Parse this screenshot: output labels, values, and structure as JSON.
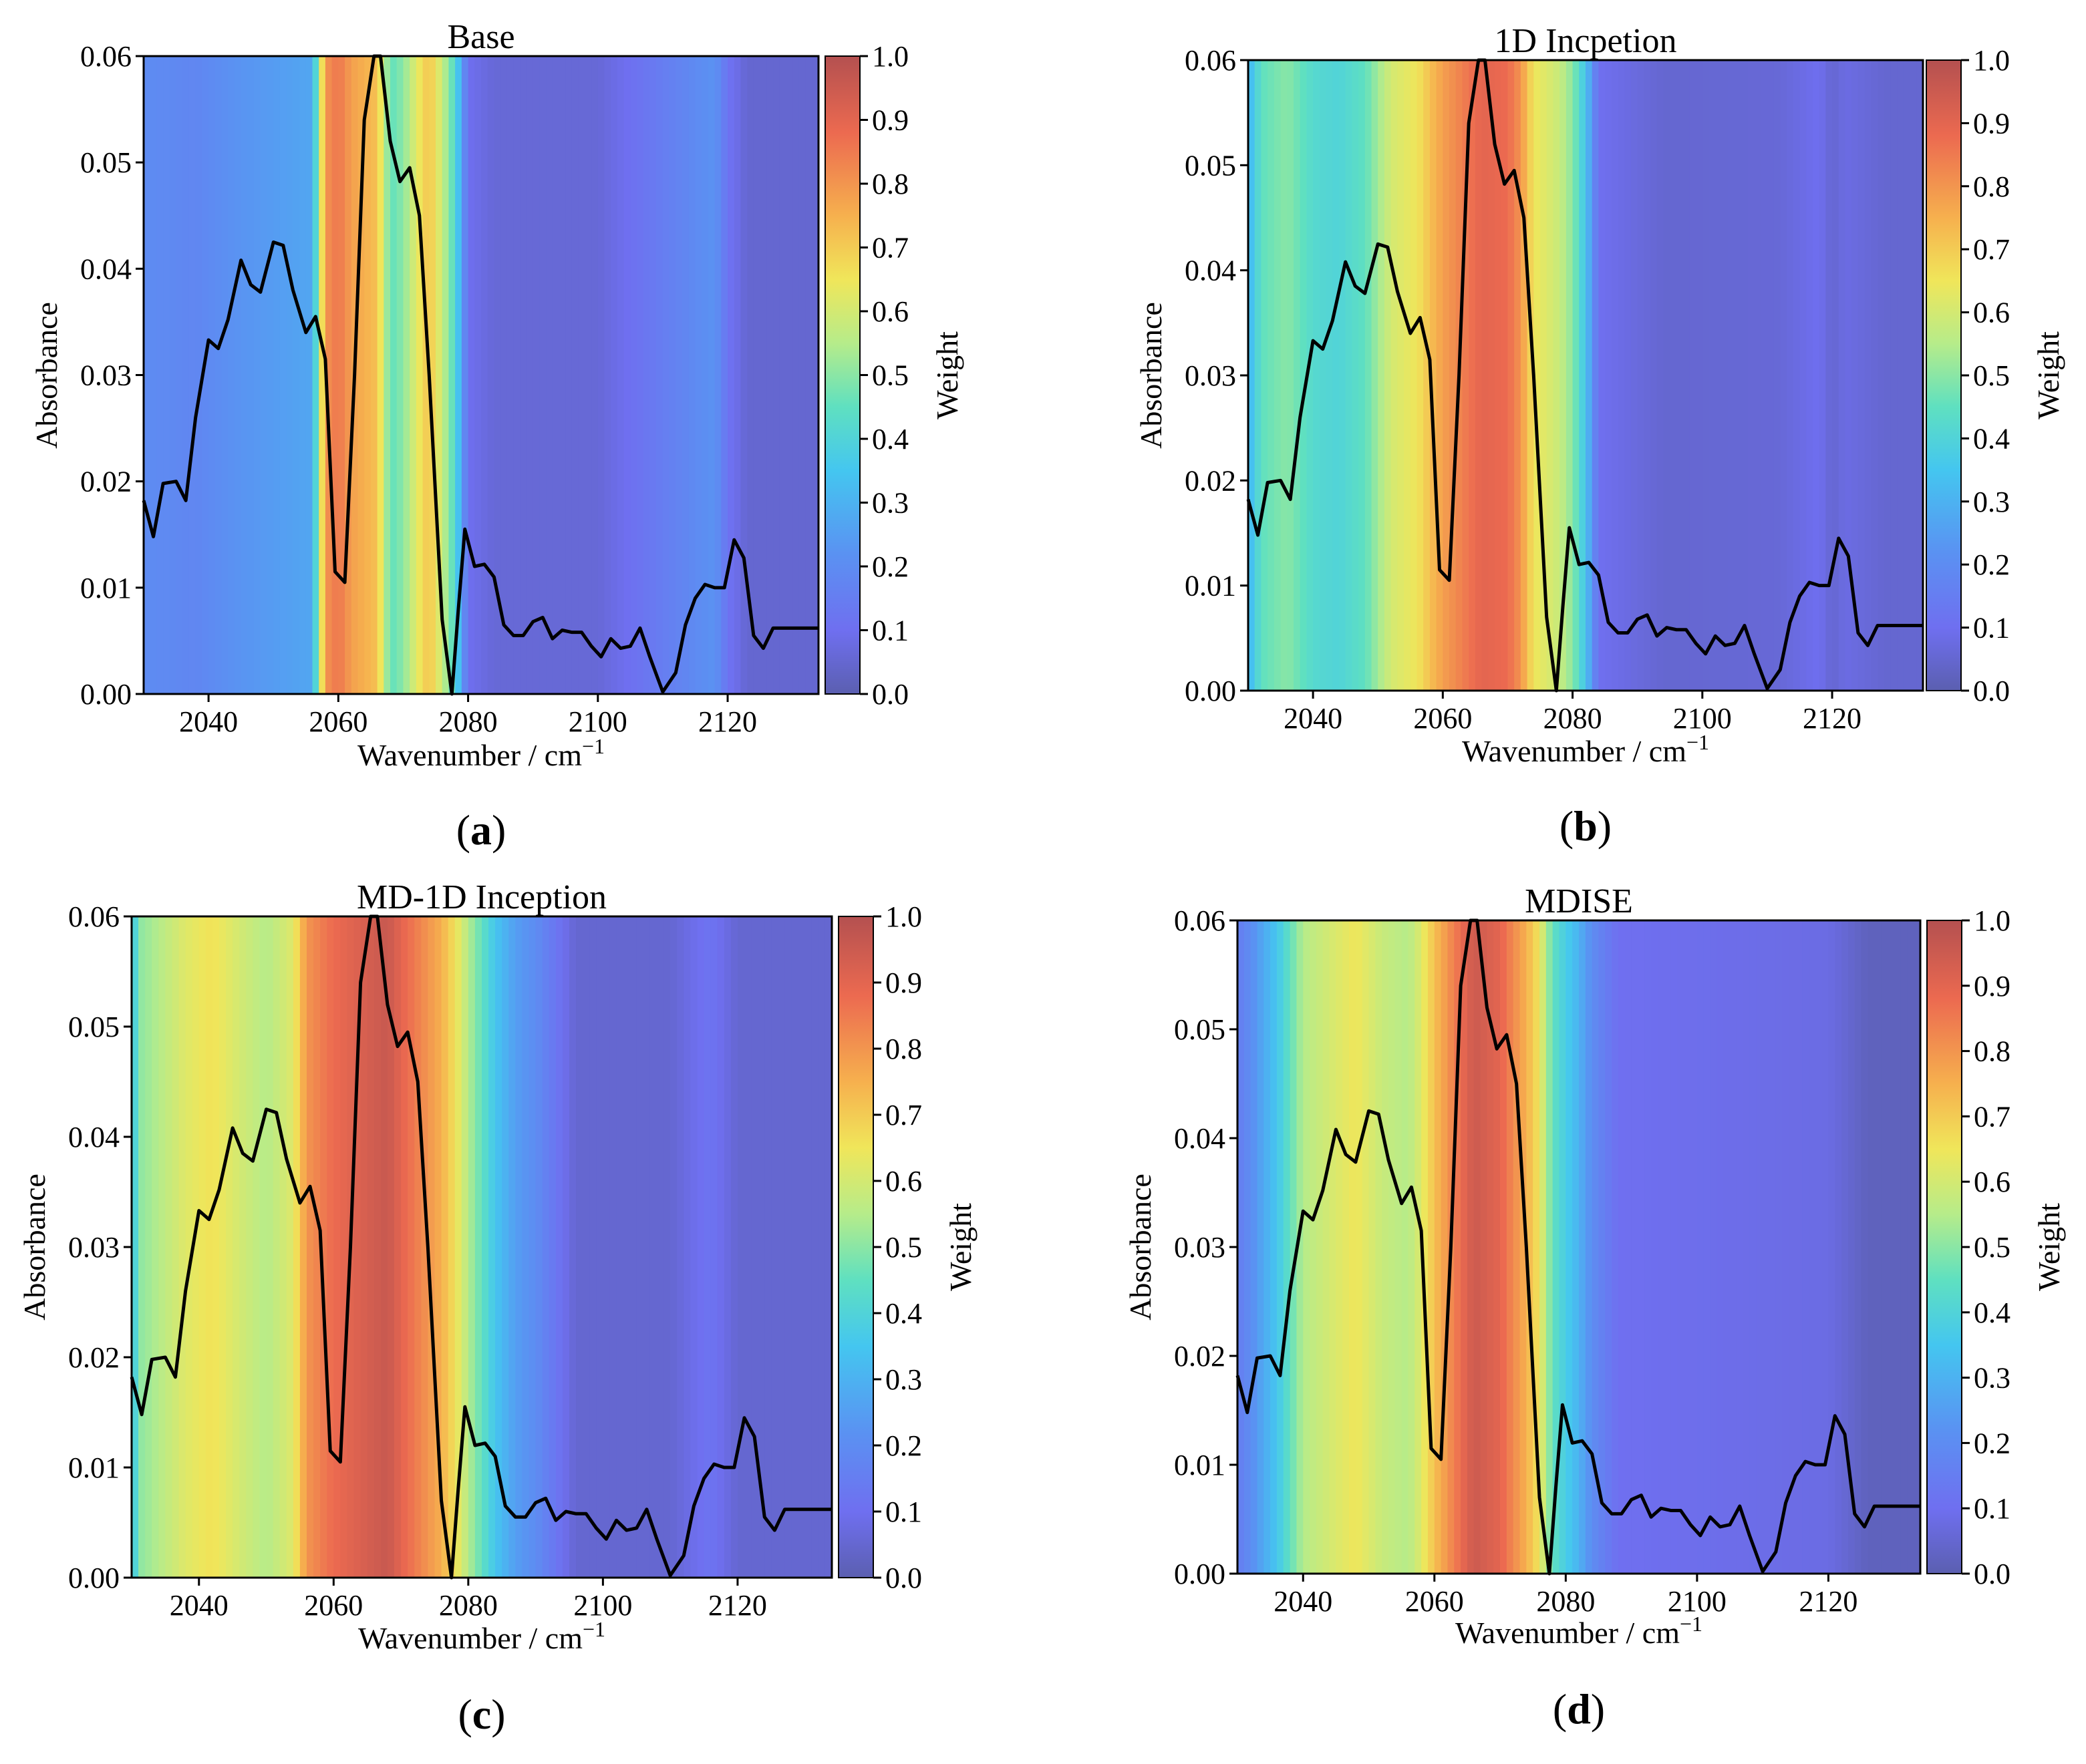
{
  "figure": {
    "captions": [
      "(a)",
      "(b)",
      "(c)",
      "(d)"
    ]
  },
  "chart_data": [
    {
      "type": "line",
      "title": "Base",
      "caption_letter": "a",
      "xlabel": "Wavenumber / cm",
      "xlabel_sup": "−1",
      "ylabel": "Absorbance",
      "colorbar_label": "Weight",
      "xlim": [
        2030,
        2134
      ],
      "ylim": [
        0,
        0.06
      ],
      "xticks": [
        2040,
        2060,
        2080,
        2100,
        2120
      ],
      "yticks": [
        "0.00",
        "0.01",
        "0.02",
        "0.03",
        "0.04",
        "0.05",
        "0.06"
      ],
      "cbar_ticks": [
        "0.0",
        "0.1",
        "0.2",
        "0.3",
        "0.4",
        "0.5",
        "0.6",
        "0.7",
        "0.8",
        "0.9",
        "1.0"
      ],
      "weight_bands": [
        [
          2030,
          0.2
        ],
        [
          2038,
          0.18
        ],
        [
          2044,
          0.22
        ],
        [
          2056,
          0.27
        ],
        [
          2058,
          0.8
        ],
        [
          2060,
          0.86
        ],
        [
          2062,
          0.78
        ],
        [
          2064,
          0.75
        ],
        [
          2066,
          0.72
        ],
        [
          2068,
          0.45
        ],
        [
          2070,
          0.5
        ],
        [
          2072,
          0.62
        ],
        [
          2074,
          0.72
        ],
        [
          2076,
          0.58
        ],
        [
          2078,
          0.42
        ],
        [
          2080,
          0.1
        ],
        [
          2084,
          0.06
        ],
        [
          2100,
          0.06
        ],
        [
          2118,
          0.22
        ],
        [
          2120,
          0.12
        ],
        [
          2123,
          0.05
        ],
        [
          2134,
          0.05
        ]
      ]
    },
    {
      "type": "line",
      "title": "1D Incpetion",
      "caption_letter": "b",
      "xlabel": "Wavenumber / cm",
      "xlabel_sup": "−1",
      "ylabel": "Absorbance",
      "colorbar_label": "Weight",
      "xlim": [
        2030,
        2134
      ],
      "ylim": [
        0,
        0.06
      ],
      "xticks": [
        2040,
        2060,
        2080,
        2100,
        2120
      ],
      "yticks": [
        "0.00",
        "0.01",
        "0.02",
        "0.03",
        "0.04",
        "0.05",
        "0.06"
      ],
      "cbar_ticks": [
        "0.0",
        "0.1",
        "0.2",
        "0.3",
        "0.4",
        "0.5",
        "0.6",
        "0.7",
        "0.8",
        "0.9",
        "1.0"
      ],
      "weight_bands": [
        [
          2030,
          0.3
        ],
        [
          2032,
          0.45
        ],
        [
          2036,
          0.5
        ],
        [
          2040,
          0.42
        ],
        [
          2044,
          0.4
        ],
        [
          2048,
          0.45
        ],
        [
          2052,
          0.6
        ],
        [
          2056,
          0.65
        ],
        [
          2058,
          0.72
        ],
        [
          2060,
          0.78
        ],
        [
          2062,
          0.82
        ],
        [
          2066,
          0.9
        ],
        [
          2070,
          0.88
        ],
        [
          2072,
          0.8
        ],
        [
          2074,
          0.65
        ],
        [
          2078,
          0.58
        ],
        [
          2080,
          0.5
        ],
        [
          2082,
          0.35
        ],
        [
          2084,
          0.1
        ],
        [
          2094,
          0.05
        ],
        [
          2112,
          0.06
        ],
        [
          2118,
          0.1
        ],
        [
          2120,
          0.05
        ],
        [
          2122,
          0.08
        ],
        [
          2128,
          0.05
        ],
        [
          2134,
          0.05
        ]
      ]
    },
    {
      "type": "line",
      "title": "MD-1D Inception",
      "caption_letter": "c",
      "xlabel": "Wavenumber / cm",
      "xlabel_sup": "−1",
      "ylabel": "Absorbance",
      "colorbar_label": "Weight",
      "xlim": [
        2030,
        2134
      ],
      "ylim": [
        0,
        0.06
      ],
      "xticks": [
        2040,
        2060,
        2080,
        2100,
        2120
      ],
      "yticks": [
        "0.00",
        "0.01",
        "0.02",
        "0.03",
        "0.04",
        "0.05",
        "0.06"
      ],
      "cbar_ticks": [
        "0.0",
        "0.1",
        "0.2",
        "0.3",
        "0.4",
        "0.5",
        "0.6",
        "0.7",
        "0.8",
        "0.9",
        "1.0"
      ],
      "weight_bands": [
        [
          2030,
          0.3
        ],
        [
          2031,
          0.5
        ],
        [
          2034,
          0.55
        ],
        [
          2038,
          0.62
        ],
        [
          2042,
          0.66
        ],
        [
          2046,
          0.6
        ],
        [
          2050,
          0.55
        ],
        [
          2054,
          0.62
        ],
        [
          2056,
          0.8
        ],
        [
          2060,
          0.88
        ],
        [
          2064,
          0.92
        ],
        [
          2068,
          0.96
        ],
        [
          2070,
          0.9
        ],
        [
          2072,
          0.85
        ],
        [
          2076,
          0.75
        ],
        [
          2078,
          0.66
        ],
        [
          2080,
          0.55
        ],
        [
          2084,
          0.35
        ],
        [
          2087,
          0.25
        ],
        [
          2090,
          0.2
        ],
        [
          2094,
          0.1
        ],
        [
          2096,
          0.05
        ],
        [
          2110,
          0.05
        ],
        [
          2116,
          0.12
        ],
        [
          2120,
          0.05
        ],
        [
          2134,
          0.05
        ]
      ]
    },
    {
      "type": "line",
      "title": "MDISE",
      "caption_letter": "d",
      "xlabel": "Wavenumber / cm",
      "xlabel_sup": "−1",
      "ylabel": "Absorbance",
      "colorbar_label": "Weight",
      "xlim": [
        2030,
        2134
      ],
      "ylim": [
        0,
        0.06
      ],
      "xticks": [
        2040,
        2060,
        2080,
        2100,
        2120
      ],
      "yticks": [
        "0.00",
        "0.01",
        "0.02",
        "0.03",
        "0.04",
        "0.05",
        "0.06"
      ],
      "cbar_ticks": [
        "0.0",
        "0.1",
        "0.2",
        "0.3",
        "0.4",
        "0.5",
        "0.6",
        "0.7",
        "0.8",
        "0.9",
        "1.0"
      ],
      "weight_bands": [
        [
          2030,
          0.15
        ],
        [
          2032,
          0.2
        ],
        [
          2034,
          0.28
        ],
        [
          2036,
          0.35
        ],
        [
          2038,
          0.45
        ],
        [
          2040,
          0.55
        ],
        [
          2044,
          0.6
        ],
        [
          2048,
          0.65
        ],
        [
          2052,
          0.58
        ],
        [
          2056,
          0.55
        ],
        [
          2058,
          0.62
        ],
        [
          2060,
          0.72
        ],
        [
          2062,
          0.8
        ],
        [
          2064,
          0.88
        ],
        [
          2066,
          0.95
        ],
        [
          2070,
          0.9
        ],
        [
          2072,
          0.82
        ],
        [
          2074,
          0.75
        ],
        [
          2076,
          0.65
        ],
        [
          2078,
          0.45
        ],
        [
          2082,
          0.3
        ],
        [
          2084,
          0.2
        ],
        [
          2088,
          0.1
        ],
        [
          2120,
          0.08
        ],
        [
          2126,
          0.02
        ],
        [
          2134,
          0.02
        ]
      ]
    }
  ],
  "spectrum": {
    "x": [
      2030,
      2031.5,
      2033,
      2035,
      2036.5,
      2038,
      2040,
      2041.5,
      2043,
      2045,
      2046.5,
      2048,
      2050,
      2051.5,
      2053,
      2055,
      2056.5,
      2058,
      2059.5,
      2061,
      2062.5,
      2064,
      2065.5,
      2066.5,
      2068,
      2069.5,
      2071,
      2072.5,
      2074,
      2076,
      2077.5,
      2078.5,
      2079.5,
      2081,
      2082.5,
      2084,
      2085.5,
      2087,
      2088.5,
      2090,
      2091.5,
      2093,
      2094.5,
      2096,
      2097.5,
      2099,
      2100.5,
      2102,
      2103.5,
      2105,
      2106.5,
      2108,
      2110,
      2112,
      2113.5,
      2115,
      2116.5,
      2118,
      2119.5,
      2121,
      2122.5,
      2124,
      2125.5,
      2127,
      2128.5,
      2130,
      2131.5,
      2133,
      2134
    ],
    "y": [
      0.0182,
      0.0148,
      0.0198,
      0.02,
      0.0182,
      0.026,
      0.0333,
      0.0325,
      0.0352,
      0.0408,
      0.0385,
      0.0378,
      0.0425,
      0.0422,
      0.038,
      0.034,
      0.0355,
      0.0315,
      0.0115,
      0.0105,
      0.03,
      0.054,
      0.06,
      0.06,
      0.052,
      0.0482,
      0.0495,
      0.045,
      0.03,
      0.007,
      0.0,
      0.008,
      0.0155,
      0.012,
      0.0122,
      0.011,
      0.0065,
      0.0055,
      0.0055,
      0.0068,
      0.0072,
      0.0052,
      0.006,
      0.0058,
      0.0058,
      0.0045,
      0.0035,
      0.0052,
      0.0043,
      0.0045,
      0.0062,
      0.0035,
      0.0002,
      0.002,
      0.0065,
      0.009,
      0.0103,
      0.01,
      0.01,
      0.0145,
      0.0128,
      0.0055,
      0.0043,
      0.0062,
      0.0062,
      0.0062,
      0.0062,
      0.0062,
      0.0062
    ]
  }
}
